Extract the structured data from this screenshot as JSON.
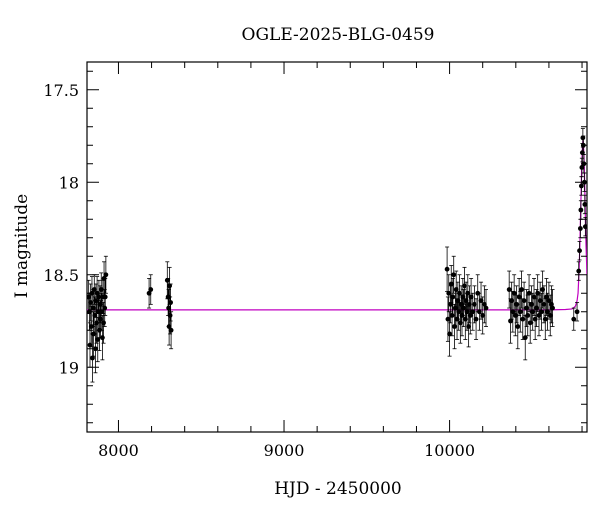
{
  "chart_data": {
    "type": "scatter",
    "title": "OGLE-2025-BLG-0459",
    "xlabel": "HJD - 2450000",
    "ylabel": "I magnitude",
    "xlim": [
      7810,
      10830
    ],
    "ylim": [
      19.35,
      17.35
    ],
    "y_inverted": true,
    "grid": false,
    "legend": "none",
    "x_ticks": [
      8000,
      9000,
      10000
    ],
    "x_tick_labels": [
      "8000",
      "9000",
      "10000"
    ],
    "y_ticks": [
      17.5,
      18,
      18.5,
      19
    ],
    "y_tick_labels": [
      "17.5",
      "18",
      "18.5",
      "19"
    ],
    "colors": {
      "points": "#000000",
      "model": "#c000c0"
    },
    "series": [
      {
        "type": "scatter-errorbars",
        "points": [
          [
            7820,
            18.62,
            0.09
          ],
          [
            7825,
            18.7,
            0.1
          ],
          [
            7828,
            18.88,
            0.12
          ],
          [
            7832,
            18.65,
            0.1
          ],
          [
            7836,
            18.78,
            0.11
          ],
          [
            7840,
            18.6,
            0.09
          ],
          [
            7843,
            18.95,
            0.13
          ],
          [
            7847,
            18.68,
            0.1
          ],
          [
            7850,
            18.82,
            0.12
          ],
          [
            7854,
            18.58,
            0.08
          ],
          [
            7857,
            18.72,
            0.1
          ],
          [
            7861,
            18.9,
            0.13
          ],
          [
            7864,
            18.64,
            0.09
          ],
          [
            7868,
            18.76,
            0.11
          ],
          [
            7871,
            18.6,
            0.09
          ],
          [
            7875,
            18.85,
            0.12
          ],
          [
            7878,
            18.7,
            0.1
          ],
          [
            7882,
            18.62,
            0.09
          ],
          [
            7885,
            18.8,
            0.11
          ],
          [
            7889,
            18.66,
            0.1
          ],
          [
            7892,
            18.74,
            0.1
          ],
          [
            7896,
            18.58,
            0.09
          ],
          [
            7899,
            18.7,
            0.1
          ],
          [
            7903,
            18.84,
            0.12
          ],
          [
            7906,
            18.62,
            0.09
          ],
          [
            7910,
            18.76,
            0.11
          ],
          [
            7913,
            18.52,
            0.09
          ],
          [
            7917,
            18.68,
            0.1
          ],
          [
            7920,
            18.62,
            0.1
          ],
          [
            7924,
            18.5,
            0.1
          ],
          [
            8185,
            18.6,
            0.08
          ],
          [
            8195,
            18.58,
            0.08
          ],
          [
            8295,
            18.53,
            0.1
          ],
          [
            8300,
            18.62,
            0.1
          ],
          [
            8303,
            18.68,
            0.1
          ],
          [
            8306,
            18.78,
            0.1
          ],
          [
            8309,
            18.56,
            0.1
          ],
          [
            8312,
            18.72,
            0.1
          ],
          [
            8315,
            18.65,
            0.1
          ],
          [
            8318,
            18.8,
            0.1
          ],
          [
            9985,
            18.47,
            0.12
          ],
          [
            9990,
            18.74,
            0.12
          ],
          [
            9995,
            18.6,
            0.1
          ],
          [
            10000,
            18.82,
            0.12
          ],
          [
            10005,
            18.66,
            0.1
          ],
          [
            10010,
            18.55,
            0.1
          ],
          [
            10015,
            18.72,
            0.11
          ],
          [
            10020,
            18.62,
            0.1
          ],
          [
            10025,
            18.5,
            0.1
          ],
          [
            10030,
            18.78,
            0.12
          ],
          [
            10035,
            18.68,
            0.1
          ],
          [
            10040,
            18.58,
            0.1
          ],
          [
            10045,
            18.74,
            0.11
          ],
          [
            10050,
            18.64,
            0.1
          ],
          [
            10055,
            18.7,
            0.1
          ],
          [
            10060,
            18.6,
            0.1
          ],
          [
            10065,
            18.76,
            0.11
          ],
          [
            10070,
            18.66,
            0.1
          ],
          [
            10075,
            18.72,
            0.11
          ],
          [
            10080,
            18.62,
            0.1
          ],
          [
            10085,
            18.68,
            0.1
          ],
          [
            10090,
            18.56,
            0.1
          ],
          [
            10095,
            18.74,
            0.11
          ],
          [
            10100,
            18.64,
            0.1
          ],
          [
            10105,
            18.7,
            0.1
          ],
          [
            10110,
            18.6,
            0.1
          ],
          [
            10115,
            18.78,
            0.11
          ],
          [
            10120,
            18.66,
            0.1
          ],
          [
            10125,
            18.72,
            0.1
          ],
          [
            10130,
            18.62,
            0.1
          ],
          [
            10140,
            18.7,
            0.1
          ],
          [
            10150,
            18.66,
            0.1
          ],
          [
            10160,
            18.74,
            0.11
          ],
          [
            10170,
            18.6,
            0.1
          ],
          [
            10180,
            18.7,
            0.1
          ],
          [
            10190,
            18.64,
            0.1
          ],
          [
            10200,
            18.72,
            0.1
          ],
          [
            10210,
            18.66,
            0.1
          ],
          [
            10220,
            18.68,
            0.1
          ],
          [
            10360,
            18.58,
            0.1
          ],
          [
            10368,
            18.75,
            0.12
          ],
          [
            10375,
            18.64,
            0.1
          ],
          [
            10382,
            18.7,
            0.11
          ],
          [
            10390,
            18.6,
            0.1
          ],
          [
            10397,
            18.72,
            0.11
          ],
          [
            10405,
            18.66,
            0.1
          ],
          [
            10412,
            18.78,
            0.12
          ],
          [
            10420,
            18.62,
            0.1
          ],
          [
            10427,
            18.7,
            0.11
          ],
          [
            10435,
            18.58,
            0.1
          ],
          [
            10442,
            18.74,
            0.11
          ],
          [
            10450,
            18.64,
            0.1
          ],
          [
            10457,
            18.84,
            0.12
          ],
          [
            10465,
            18.68,
            0.1
          ],
          [
            10472,
            18.72,
            0.11
          ],
          [
            10480,
            18.6,
            0.1
          ],
          [
            10487,
            18.76,
            0.11
          ],
          [
            10495,
            18.66,
            0.1
          ],
          [
            10502,
            18.7,
            0.1
          ],
          [
            10510,
            18.62,
            0.1
          ],
          [
            10517,
            18.74,
            0.11
          ],
          [
            10525,
            18.68,
            0.1
          ],
          [
            10532,
            18.6,
            0.1
          ],
          [
            10540,
            18.72,
            0.11
          ],
          [
            10547,
            18.64,
            0.1
          ],
          [
            10555,
            18.7,
            0.1
          ],
          [
            10562,
            18.58,
            0.1
          ],
          [
            10570,
            18.66,
            0.1
          ],
          [
            10578,
            18.74,
            0.11
          ],
          [
            10585,
            18.62,
            0.1
          ],
          [
            10592,
            18.7,
            0.1
          ],
          [
            10600,
            18.64,
            0.1
          ],
          [
            10608,
            18.72,
            0.11
          ],
          [
            10615,
            18.66,
            0.1
          ],
          [
            10622,
            18.68,
            0.1
          ],
          [
            10750,
            18.74,
            0.06
          ],
          [
            10770,
            18.7,
            0.05
          ],
          [
            10780,
            18.48,
            0.05
          ],
          [
            10785,
            18.37,
            0.05
          ],
          [
            10790,
            18.25,
            0.05
          ],
          [
            10793,
            18.15,
            0.05
          ],
          [
            10796,
            18.02,
            0.05
          ],
          [
            10799,
            17.92,
            0.05
          ],
          [
            10802,
            17.84,
            0.05
          ],
          [
            10805,
            17.76,
            0.05
          ],
          [
            10808,
            17.8,
            0.05
          ],
          [
            10811,
            17.9,
            0.05
          ],
          [
            10814,
            18.0,
            0.05
          ],
          [
            10817,
            18.12,
            0.05
          ],
          [
            10820,
            18.24,
            0.05
          ]
        ]
      },
      {
        "type": "model-line",
        "baseline": 18.69,
        "peak_time": 10806,
        "peak_mag": 17.77,
        "points": [
          [
            7810,
            18.69
          ],
          [
            10600,
            18.69
          ],
          [
            10700,
            18.688
          ],
          [
            10740,
            18.685
          ],
          [
            10760,
            18.67
          ],
          [
            10770,
            18.64
          ],
          [
            10776,
            18.6
          ],
          [
            10782,
            18.48
          ],
          [
            10787,
            18.34
          ],
          [
            10791,
            18.18
          ],
          [
            10795,
            18.04
          ],
          [
            10798,
            17.92
          ],
          [
            10801,
            17.84
          ],
          [
            10804,
            17.79
          ],
          [
            10806,
            17.77
          ],
          [
            10808,
            17.79
          ],
          [
            10811,
            17.84
          ],
          [
            10814,
            17.93
          ],
          [
            10817,
            18.05
          ],
          [
            10820,
            18.18
          ],
          [
            10824,
            18.34
          ],
          [
            10830,
            18.5
          ]
        ]
      }
    ]
  }
}
